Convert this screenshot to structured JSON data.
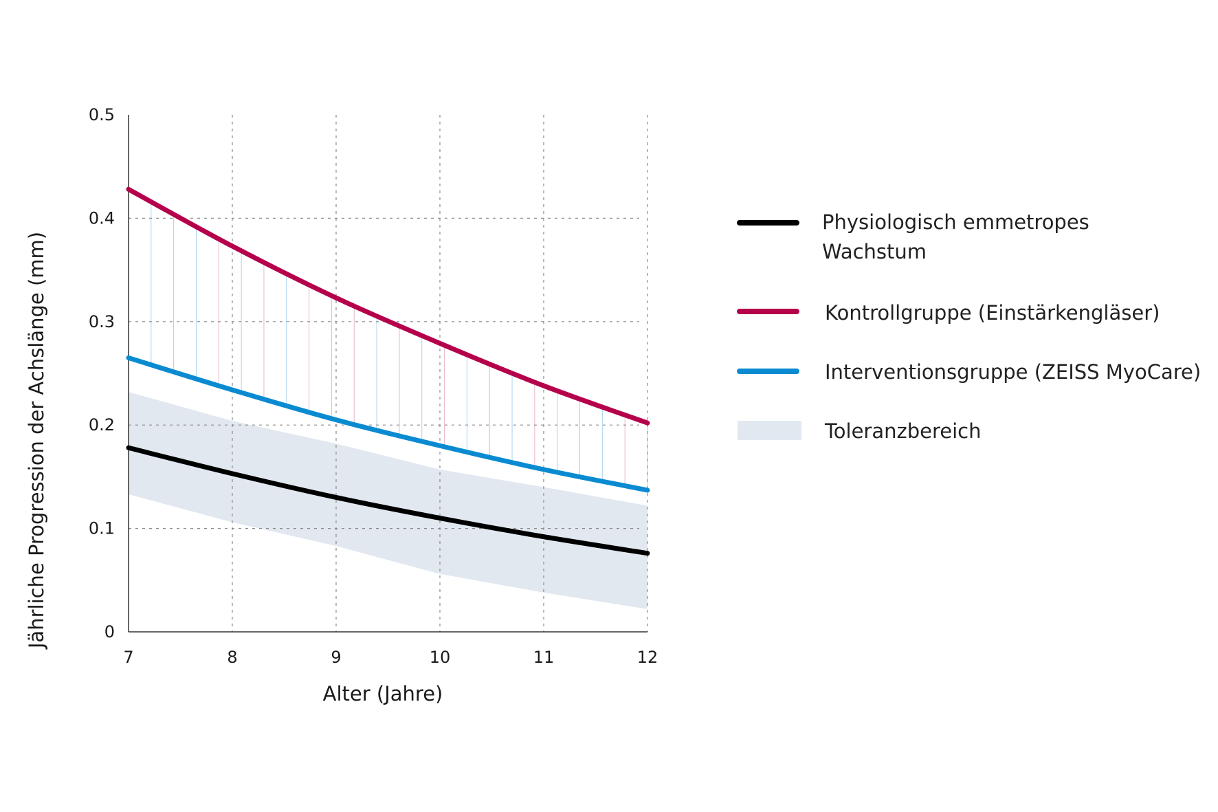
{
  "chart_data": {
    "type": "line",
    "title": "",
    "xlabel": "Alter (Jahre)",
    "ylabel": "Jährliche Progression der Achslänge (mm)",
    "x": [
      7,
      8,
      9,
      10,
      11,
      12
    ],
    "xlim": [
      7,
      12
    ],
    "ylim": [
      0,
      0.5
    ],
    "x_ticks": [
      "7",
      "8",
      "9",
      "10",
      "11",
      "12"
    ],
    "y_ticks": [
      "0",
      "0.1",
      "0.2",
      "0.3",
      "0.4",
      "0.5"
    ],
    "y_tick_values": [
      0,
      0.1,
      0.2,
      0.3,
      0.4,
      0.5
    ],
    "grid": "dashed, on interior ticks",
    "legend_position": "right",
    "series": [
      {
        "name": "Physiologisch emmetropes Wachstum",
        "color": "#000000",
        "values": [
          0.178,
          0.153,
          0.13,
          0.11,
          0.092,
          0.076
        ]
      },
      {
        "name": "Kontrollgruppe (Einstärkengläser)",
        "color": "#b5004b",
        "values": [
          0.428,
          0.373,
          0.323,
          0.279,
          0.238,
          0.202
        ]
      },
      {
        "name": "Interventionsgruppe (ZEISS MyoCare)",
        "color": "#0a8bd1",
        "values": [
          0.265,
          0.234,
          0.205,
          0.18,
          0.157,
          0.137
        ]
      }
    ],
    "band": {
      "name": "Toleranzbereich",
      "color": "#e1e8f0",
      "upper": [
        0.232,
        0.204,
        0.182,
        0.157,
        0.14,
        0.122
      ],
      "lower": [
        0.133,
        0.106,
        0.083,
        0.056,
        0.038,
        0.022
      ]
    },
    "legend_lines": [
      [
        "Physiologisch emmetropes",
        "Wachstum"
      ],
      [
        "Kontrollgruppe (Einstärkengläser)"
      ],
      [
        "Interventionsgruppe (ZEISS MyoCare)"
      ],
      [
        "Toleranzbereich"
      ]
    ]
  }
}
